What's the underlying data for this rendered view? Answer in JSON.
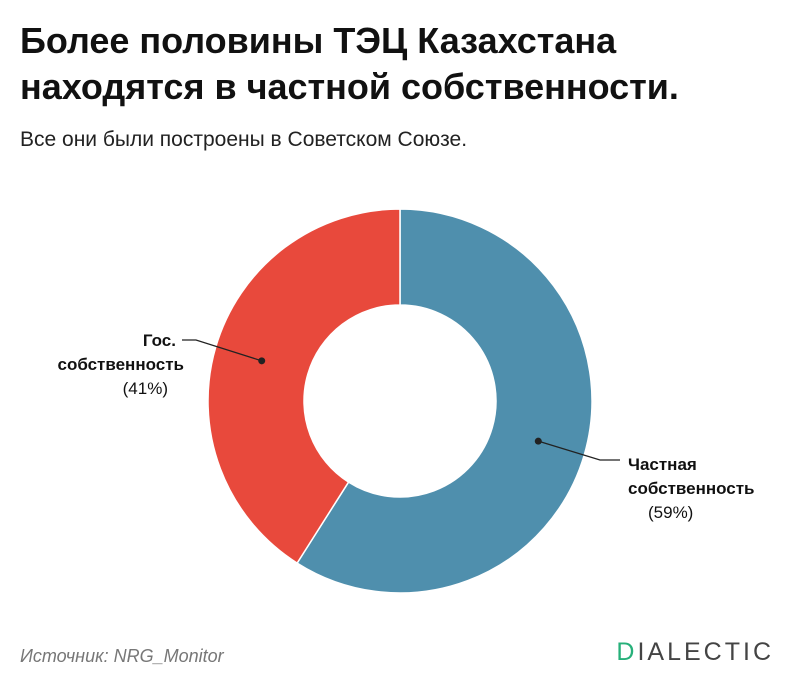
{
  "header": {
    "title_line1": "Более половины ТЭЦ Казахстана",
    "title_line2": "находятся в частной собственности.",
    "subtitle": "Все они были построены в Советском Союзе."
  },
  "chart_data": {
    "type": "pie",
    "donut": true,
    "slices": [
      {
        "label_line1": "Частная",
        "label_line2": "собственность",
        "pct_label": "(59%)",
        "value": 59,
        "color": "#4f8fad"
      },
      {
        "label_line1": "Гос.",
        "label_line2": "собственность",
        "pct_label": "(41%)",
        "value": 41,
        "color": "#e8493c"
      }
    ]
  },
  "footer": {
    "source": "Источник: NRG_Monitor",
    "brand_first": "D",
    "brand_rest": "IALECTIC"
  }
}
